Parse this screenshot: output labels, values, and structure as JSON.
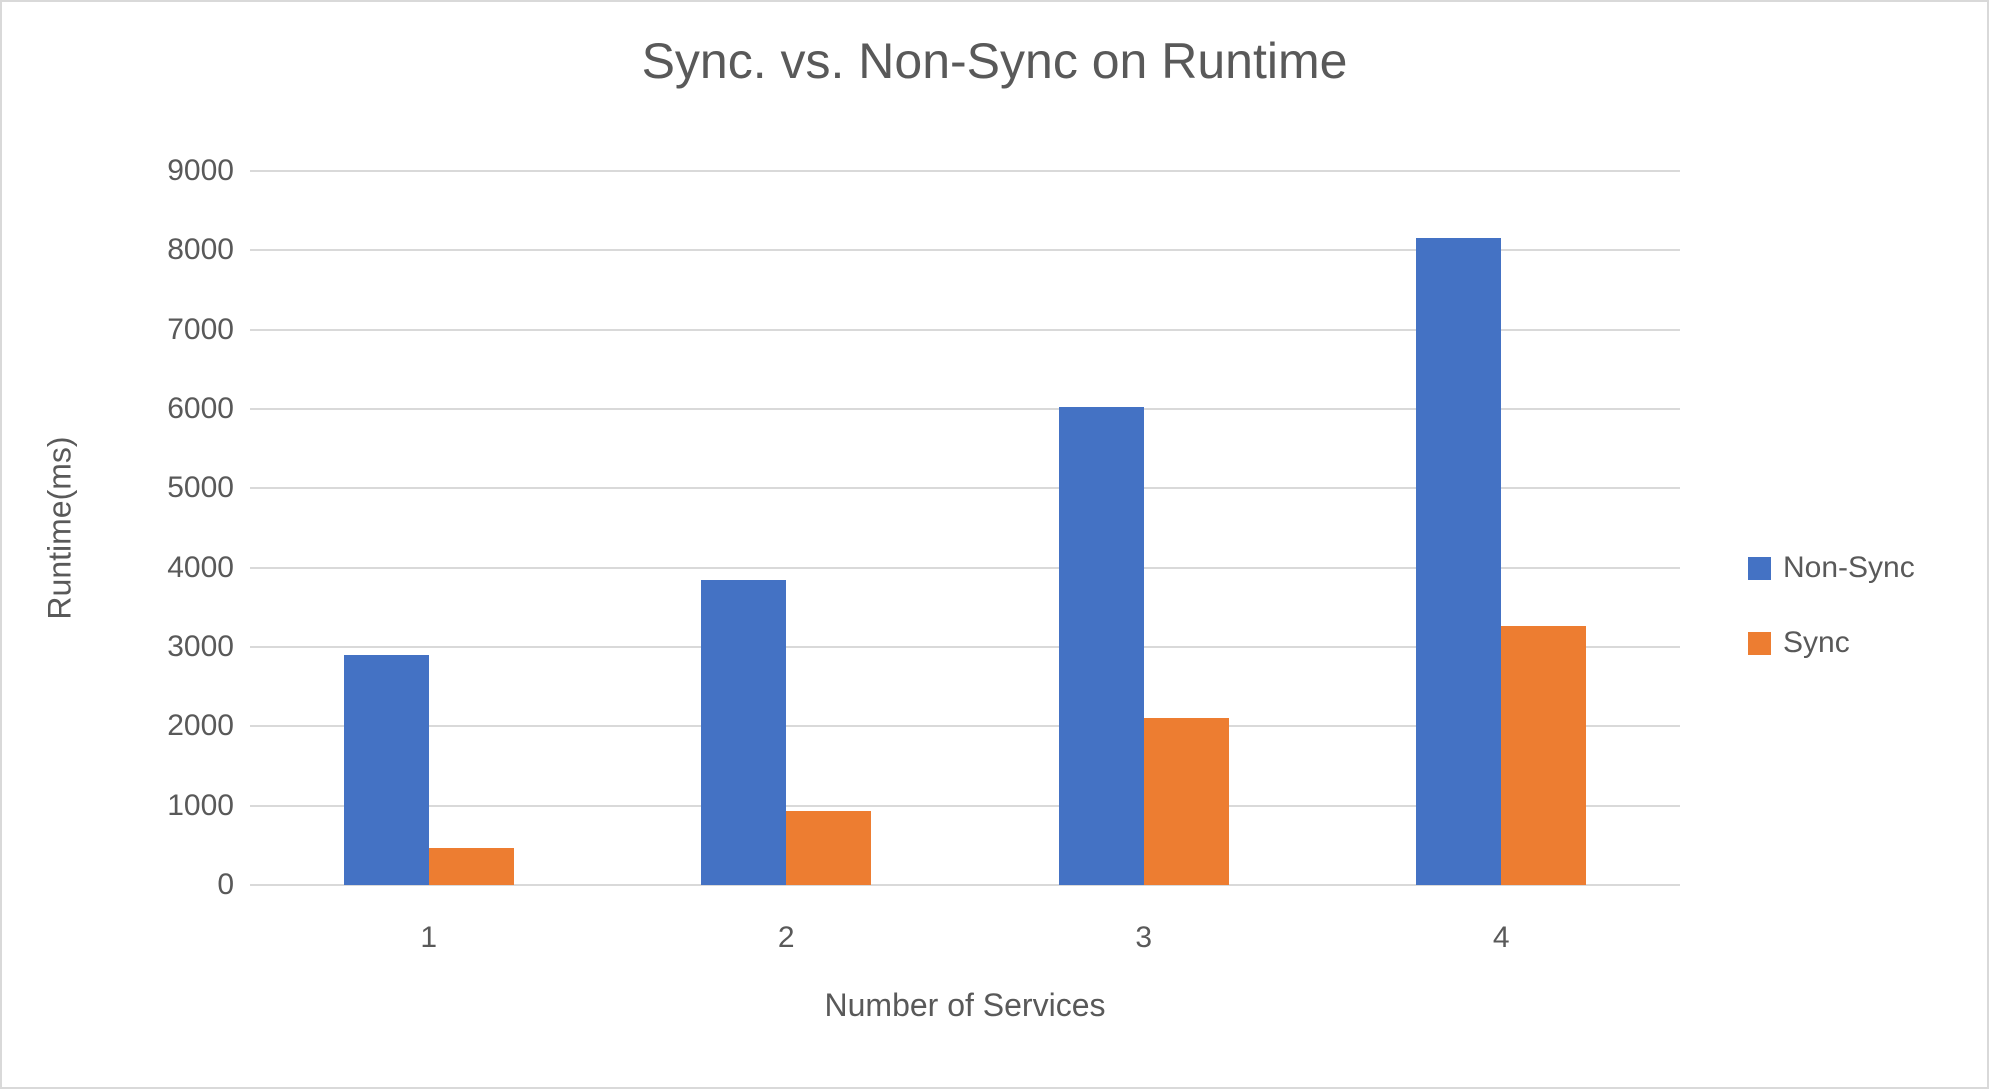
{
  "frame": {
    "background": "#FFFFFF",
    "border_color": "#D9D9D9"
  },
  "chart_data": {
    "type": "bar",
    "title": "Sync. vs. Non-Sync on Runtime",
    "xlabel": "Number of Services",
    "ylabel": "Runtime(ms)",
    "categories": [
      "1",
      "2",
      "3",
      "4"
    ],
    "series": [
      {
        "name": "Non-Sync",
        "color": "#4472C4",
        "values": [
          2900,
          3840,
          6030,
          8160
        ]
      },
      {
        "name": "Sync",
        "color": "#ED7D31",
        "values": [
          470,
          930,
          2110,
          3270
        ]
      }
    ],
    "ylim": [
      0,
      9000
    ],
    "y_tick_step": 1000,
    "y_ticks": [
      0,
      1000,
      2000,
      3000,
      4000,
      5000,
      6000,
      7000,
      8000,
      9000
    ],
    "grid": "horizontal",
    "gridline_color": "#D9D9D9",
    "text_color": "#595959",
    "legend_position": "right"
  }
}
